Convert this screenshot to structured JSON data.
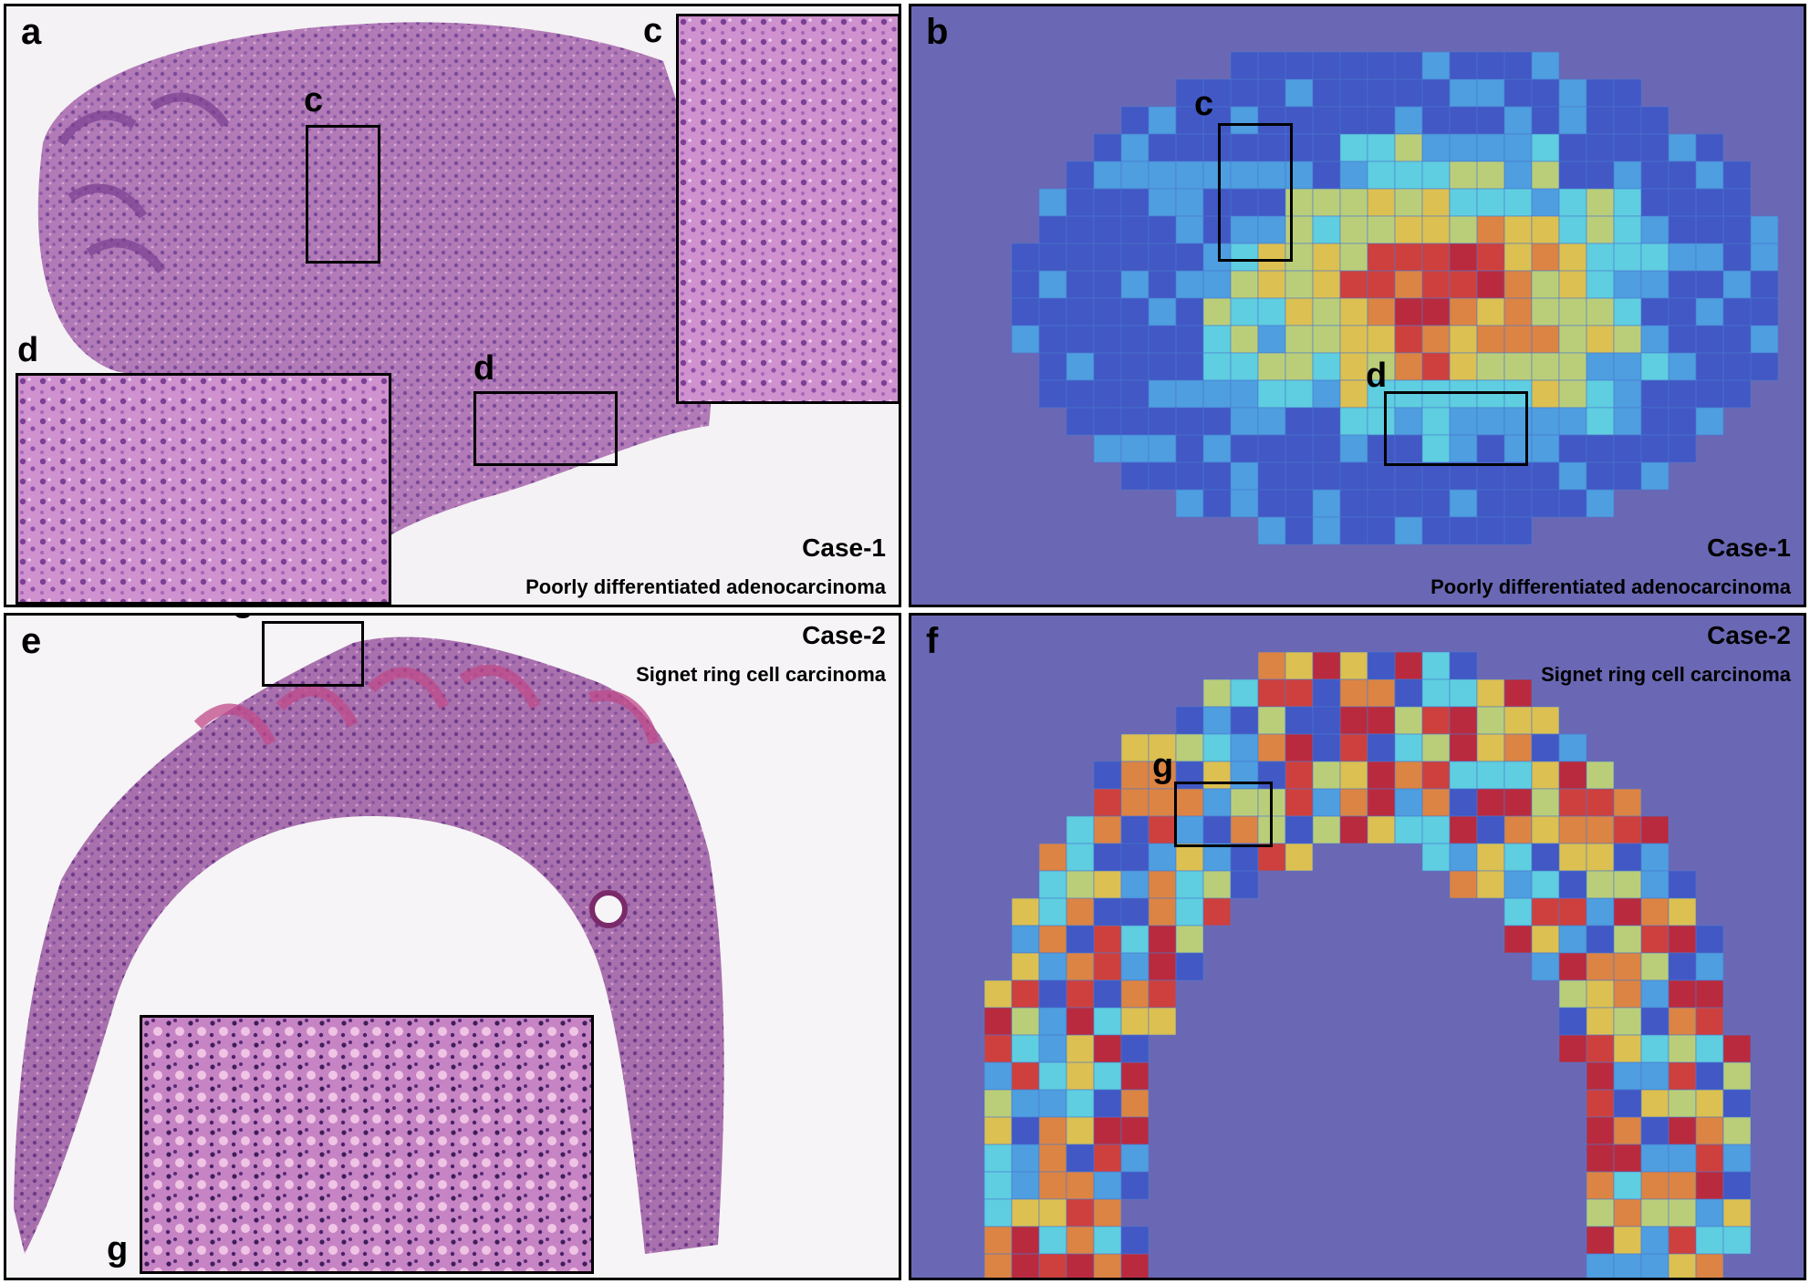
{
  "figure": {
    "panels": {
      "a": {
        "label": "a",
        "case": "Case-1",
        "diagnosis": "Poorly differentiated adenocarcinoma",
        "region_labels": {
          "c_box": "c",
          "d_box": "d",
          "c_inset": "c",
          "d_inset": "d"
        },
        "colors": {
          "tissue": "#b878b8",
          "stain_dark": "#6a3a8a",
          "inset": "#c888c8"
        }
      },
      "b": {
        "label": "b",
        "case": "Case-1",
        "diagnosis": "Poorly differentiated adenocarcinoma",
        "region_labels": {
          "c_box": "c",
          "d_box": "d"
        },
        "colors": {
          "background": "#6a68b4"
        }
      },
      "e": {
        "label": "e",
        "case": "Case-2",
        "diagnosis": "Signet ring cell carcinoma",
        "region_labels": {
          "g_box": "g",
          "g_inset": "g"
        },
        "colors": {
          "tissue": "#b070a8",
          "stain_dark": "#6a2a7a"
        }
      },
      "f": {
        "label": "f",
        "case": "Case-2",
        "diagnosis": "Signet ring cell carcinoma",
        "region_labels": {
          "g_box": "g"
        },
        "colors": {
          "background": "#6a68b4"
        }
      }
    },
    "heatmap_palette": [
      "#3a56c8",
      "#4aa8e8",
      "#5ee0e8",
      "#c8e070",
      "#f0d040",
      "#f08a30",
      "#e03a2a",
      "#c8202a"
    ]
  }
}
